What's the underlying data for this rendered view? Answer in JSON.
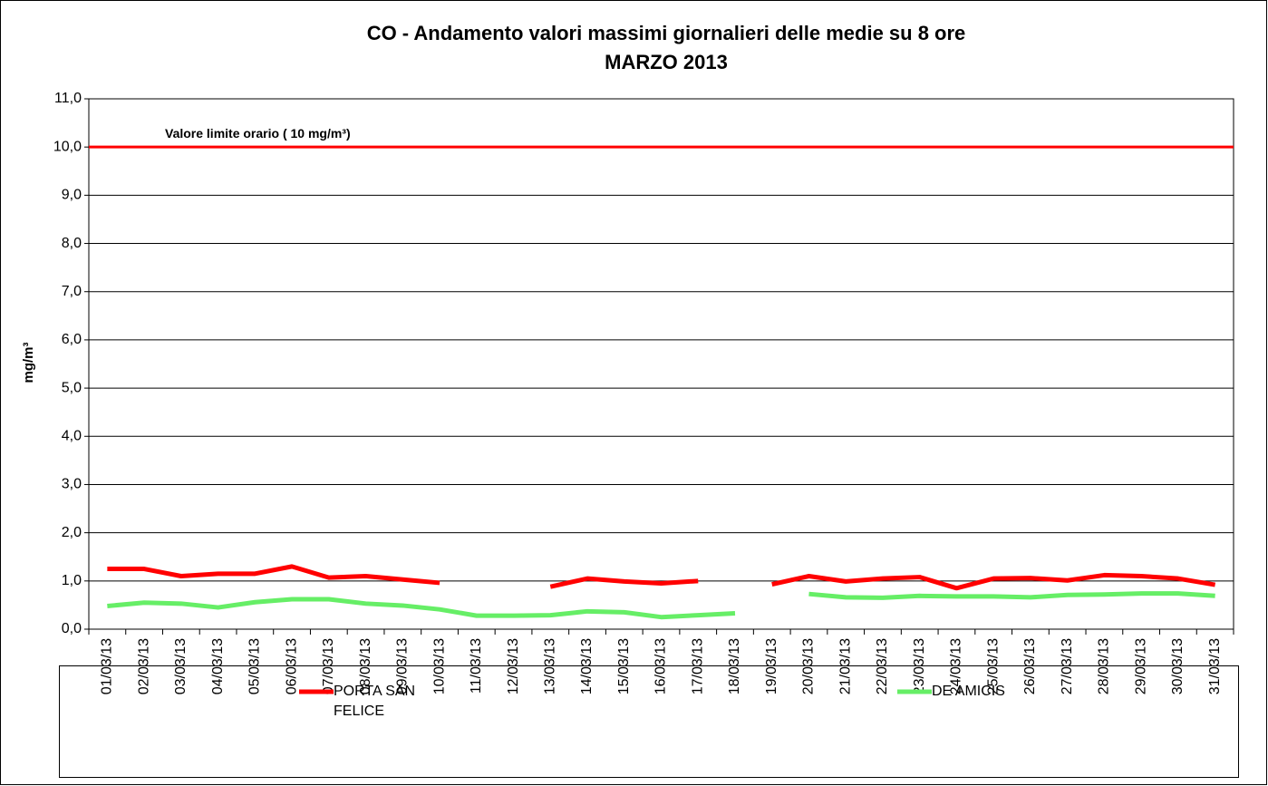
{
  "chart_data": {
    "type": "line",
    "title": "CO - Andamento valori massimi giornalieri delle medie su 8 ore",
    "subtitle": "MARZO 2013",
    "y_label": "mg/m³",
    "annotation": "Valore limite orario ( 10 mg/m³)",
    "limit": 10,
    "limit_color": "#ff0000",
    "categories": [
      "01/03/13",
      "02/03/13",
      "03/03/13",
      "04/03/13",
      "05/03/13",
      "06/03/13",
      "07/03/13",
      "08/03/13",
      "09/03/13",
      "10/03/13",
      "11/03/13",
      "12/03/13",
      "13/03/13",
      "14/03/13",
      "15/03/13",
      "16/03/13",
      "17/03/13",
      "18/03/13",
      "19/03/13",
      "20/03/13",
      "21/03/13",
      "22/03/13",
      "23/03/13",
      "24/03/13",
      "25/03/13",
      "26/03/13",
      "27/03/13",
      "28/03/13",
      "29/03/13",
      "30/03/13",
      "31/03/13"
    ],
    "series": [
      {
        "name": "PORTA SAN FELICE",
        "color": "#ff0000",
        "values": [
          1.25,
          1.25,
          1.1,
          1.15,
          1.15,
          1.3,
          1.07,
          1.1,
          1.03,
          0.96,
          null,
          null,
          0.88,
          1.05,
          0.99,
          0.95,
          1.0,
          null,
          0.93,
          1.1,
          0.99,
          1.05,
          1.08,
          0.85,
          1.05,
          1.06,
          1.01,
          1.12,
          1.1,
          1.05,
          0.92
        ]
      },
      {
        "name": "DE AMICIS",
        "color": "#66ee66",
        "values": [
          0.48,
          0.55,
          0.53,
          0.45,
          0.56,
          0.62,
          0.62,
          0.53,
          0.49,
          0.41,
          0.28,
          0.28,
          0.29,
          0.37,
          0.35,
          0.25,
          0.29,
          0.33,
          null,
          0.73,
          0.66,
          0.65,
          0.69,
          0.68,
          0.68,
          0.66,
          0.71,
          0.72,
          0.74,
          0.74,
          0.69
        ]
      }
    ],
    "ylim": [
      0,
      11
    ],
    "yticks": [
      {
        "value": 0,
        "label": "0,0"
      },
      {
        "value": 1,
        "label": "1,0"
      },
      {
        "value": 2,
        "label": "2,0"
      },
      {
        "value": 3,
        "label": "3,0"
      },
      {
        "value": 4,
        "label": "4,0"
      },
      {
        "value": 5,
        "label": "5,0"
      },
      {
        "value": 6,
        "label": "6,0"
      },
      {
        "value": 7,
        "label": "7,0"
      },
      {
        "value": 8,
        "label": "8,0"
      },
      {
        "value": 9,
        "label": "9,0"
      },
      {
        "value": 10,
        "label": "10,0"
      },
      {
        "value": 11,
        "label": "11,0"
      }
    ],
    "grid": true
  }
}
